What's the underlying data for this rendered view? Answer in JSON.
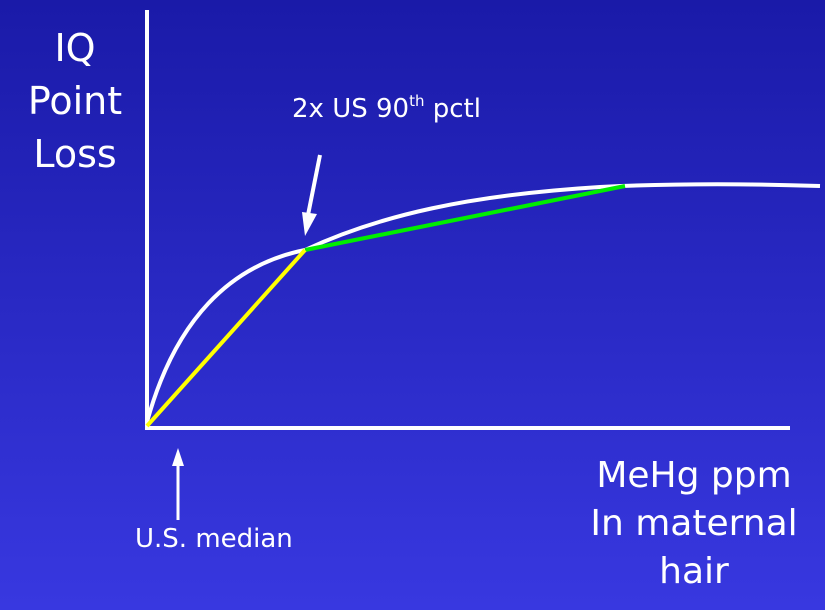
{
  "diagram": {
    "y_axis_label": [
      "IQ",
      "Point",
      "Loss"
    ],
    "x_axis_label": [
      "MeHg ppm",
      "In maternal",
      "hair"
    ],
    "annotation_top": {
      "text": "2x US 90",
      "sup": "th",
      "suffix": " pctl"
    },
    "annotation_bottom": "U.S. median",
    "colors": {
      "background_top": "#1a1aa8",
      "background_bottom": "#3838e0",
      "axes": "#ffffff",
      "curve": "#ffffff",
      "yellow_segment": "#ffff00",
      "green_segment": "#00ee00",
      "arrows": "#ffffff"
    }
  }
}
